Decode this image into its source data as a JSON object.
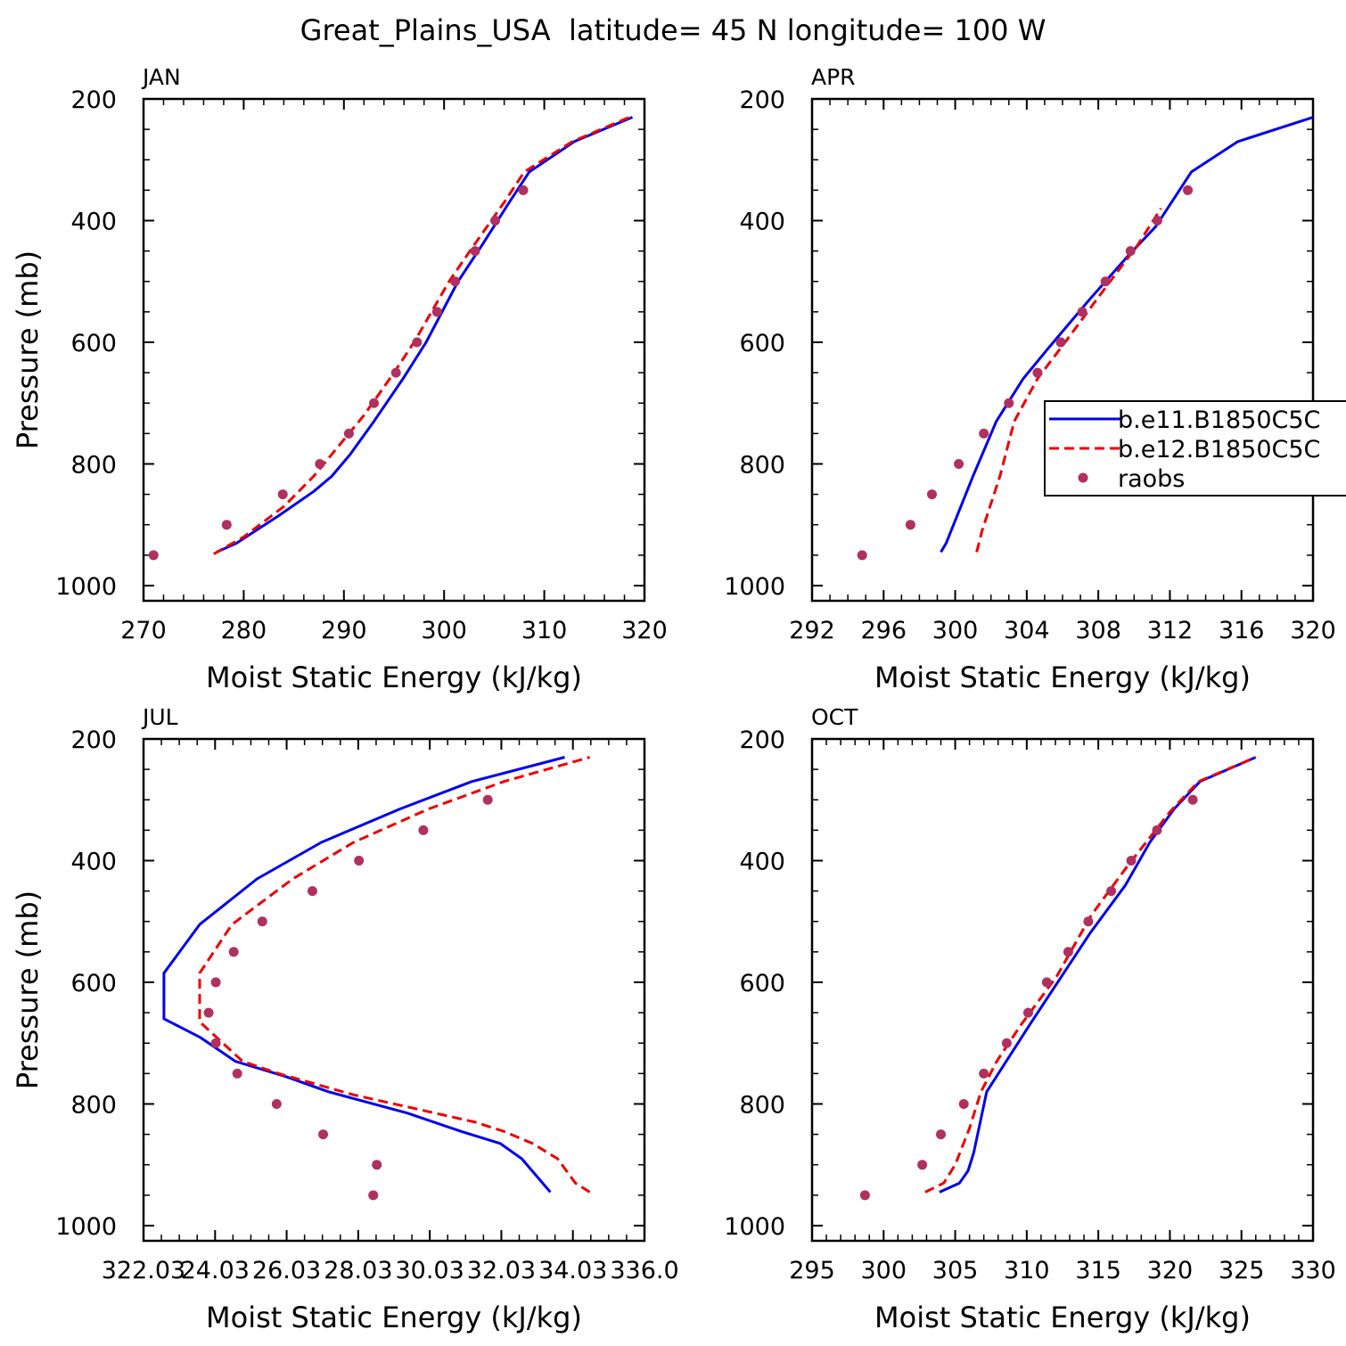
{
  "figure": {
    "title": "Great_Plains_USA  latitude= 45 N longitude= 100 W"
  },
  "colors": {
    "e11": "#0000ee",
    "e12": "#ee0000",
    "raobs": "#b03060",
    "axis": "#000000"
  },
  "legend": {
    "placement": "right-middle (APR panel, clipped)",
    "entries": [
      {
        "label": "b.e11.B1850C5C",
        "style": "solid",
        "color": "#0000ee"
      },
      {
        "label": "b.e12.B1850C5C",
        "style": "dashed",
        "color": "#ee0000"
      },
      {
        "label": "raobs",
        "style": "dot",
        "color": "#b03060"
      }
    ]
  },
  "chart_data": [
    {
      "type": "line",
      "panel_label": "JAN",
      "xlabel": "Moist Static Energy (kJ/kg)",
      "ylabel": "Pressure (mb)",
      "xlim": [
        270,
        320
      ],
      "ylim": [
        1025,
        200
      ],
      "x_ticks": [
        270,
        280,
        290,
        300,
        310,
        320
      ],
      "x_tick_labels": [
        "270",
        "280",
        "290",
        "300",
        "310",
        "320"
      ],
      "y_ticks": [
        200,
        400,
        600,
        800,
        1000
      ],
      "y_tick_labels": [
        "200",
        "400",
        "600",
        "800",
        "1000"
      ],
      "x_minor": 2,
      "y_minor": 50,
      "series": [
        {
          "name": "b.e11.B1850C5C",
          "style": "solid",
          "x": [
            277.3,
            279.3,
            283.5,
            287.0,
            288.8,
            290.6,
            293.0,
            295.9,
            298.2,
            301.4,
            303.8,
            306.5,
            308.5,
            313.0,
            318.8
          ],
          "y": [
            945,
            930,
            885,
            845,
            820,
            785,
            730,
            660,
            600,
            500,
            440,
            370,
            320,
            270,
            230
          ]
        },
        {
          "name": "b.e12.B1850C5C",
          "style": "dashed",
          "x": [
            277.0,
            280.0,
            284.0,
            287.0,
            289.0,
            292.0,
            295.0,
            297.0,
            300.5,
            303.0,
            306.0,
            308.0,
            312.8,
            318.5
          ],
          "y": [
            948,
            920,
            870,
            820,
            780,
            720,
            650,
            600,
            500,
            440,
            370,
            320,
            270,
            230
          ]
        },
        {
          "name": "raobs",
          "style": "dots",
          "x": [
            271.0,
            278.3,
            283.9,
            287.6,
            290.5,
            293.0,
            295.2,
            297.3,
            299.3,
            301.1,
            303.1,
            305.1,
            307.9
          ],
          "y": [
            950,
            900,
            850,
            800,
            750,
            700,
            650,
            600,
            550,
            500,
            450,
            400,
            350
          ]
        }
      ]
    },
    {
      "type": "line",
      "panel_label": "APR",
      "xlabel": "Moist Static Energy (kJ/kg)",
      "ylabel": "",
      "xlim": [
        292,
        320
      ],
      "ylim": [
        1025,
        200
      ],
      "x_ticks": [
        292,
        296,
        300,
        304,
        308,
        312,
        316,
        320
      ],
      "x_tick_labels": [
        "292",
        "296",
        "300",
        "304",
        "308",
        "312",
        "316",
        "320"
      ],
      "y_ticks": [
        200,
        400,
        600,
        800,
        1000
      ],
      "y_tick_labels": [
        "200",
        "400",
        "600",
        "800",
        "1000"
      ],
      "x_minor": 1,
      "y_minor": 50,
      "series": [
        {
          "name": "b.e11.B1850C5C",
          "style": "solid",
          "x": [
            299.2,
            299.5,
            301.0,
            302.3,
            303.8,
            305.2,
            307.5,
            309.6,
            311.2,
            313.2,
            315.8,
            320.0
          ],
          "y": [
            945,
            930,
            820,
            730,
            660,
            610,
            530,
            460,
            410,
            320,
            270,
            230
          ]
        },
        {
          "name": "b.e12.B1850C5C",
          "style": "dashed",
          "x": [
            301.2,
            301.5,
            302.5,
            303.3,
            304.6,
            306.4,
            308.4,
            310.2,
            311.5
          ],
          "y": [
            945,
            910,
            820,
            730,
            660,
            590,
            510,
            440,
            380
          ]
        },
        {
          "name": "raobs",
          "style": "dots",
          "x": [
            294.8,
            297.5,
            298.7,
            300.2,
            301.6,
            303.0,
            304.6,
            305.9,
            307.1,
            308.4,
            309.8,
            311.3,
            313.0
          ],
          "y": [
            950,
            900,
            850,
            800,
            750,
            700,
            650,
            600,
            550,
            500,
            450,
            400,
            350
          ]
        }
      ]
    },
    {
      "type": "line",
      "panel_label": "JUL",
      "xlabel": "Moist Static Energy (kJ/kg)",
      "ylabel": "Pressure (mb)",
      "xlim": [
        322.03,
        336.03
      ],
      "ylim": [
        1025,
        200
      ],
      "x_ticks": [
        322.03,
        324.03,
        326.03,
        328.03,
        330.03,
        332.03,
        334.03,
        336.03
      ],
      "x_tick_labels": [
        "322.03",
        "24.03",
        "26.03",
        "28.03",
        "30.03",
        "32.03",
        "34.03",
        "336.0"
      ],
      "y_ticks": [
        200,
        400,
        600,
        800,
        1000
      ],
      "y_tick_labels": [
        "200",
        "400",
        "600",
        "800",
        "1000"
      ],
      "x_minor": 0.5,
      "y_minor": 50,
      "series": [
        {
          "name": "b.e11.B1850C5C",
          "style": "solid",
          "x": [
            333.4,
            332.6,
            332.0,
            330.9,
            329.4,
            327.2,
            326.0,
            324.6,
            323.6,
            322.6,
            322.6,
            323.6,
            325.2,
            327.0,
            329.2,
            331.2,
            333.8
          ],
          "y": [
            945,
            890,
            865,
            845,
            815,
            780,
            755,
            730,
            690,
            660,
            585,
            505,
            430,
            370,
            315,
            270,
            230
          ]
        },
        {
          "name": "b.e12.B1850C5C",
          "style": "dashed",
          "x": [
            334.5,
            334.1,
            333.6,
            332.9,
            332.1,
            331.3,
            329.8,
            327.9,
            325.8,
            324.8,
            323.6,
            323.6,
            324.5,
            326.2,
            327.9,
            330.0,
            332.1,
            334.5
          ],
          "y": [
            945,
            930,
            890,
            865,
            845,
            830,
            810,
            785,
            750,
            730,
            665,
            585,
            505,
            430,
            370,
            315,
            270,
            230
          ]
        },
        {
          "name": "raobs",
          "style": "dots",
          "x": [
            328.45,
            328.55,
            327.05,
            325.75,
            324.65,
            324.05,
            323.85,
            324.05,
            324.55,
            325.35,
            326.75,
            328.05,
            329.85,
            331.65
          ],
          "y": [
            950,
            900,
            850,
            800,
            750,
            700,
            650,
            600,
            550,
            500,
            450,
            400,
            350,
            300
          ]
        }
      ]
    },
    {
      "type": "line",
      "panel_label": "OCT",
      "xlabel": "Moist Static Energy (kJ/kg)",
      "ylabel": "",
      "xlim": [
        295,
        330
      ],
      "ylim": [
        1025,
        200
      ],
      "x_ticks": [
        295,
        300,
        305,
        310,
        315,
        320,
        325,
        330
      ],
      "x_tick_labels": [
        "295",
        "300",
        "305",
        "310",
        "315",
        "320",
        "325",
        "330"
      ],
      "y_ticks": [
        200,
        400,
        600,
        800,
        1000
      ],
      "y_tick_labels": [
        "200",
        "400",
        "600",
        "800",
        "1000"
      ],
      "x_minor": 1,
      "y_minor": 50,
      "series": [
        {
          "name": "b.e11.B1850C5C",
          "style": "solid",
          "x": [
            303.9,
            305.3,
            305.9,
            306.3,
            307.2,
            310.2,
            314.4,
            316.9,
            318.6,
            320.3,
            322.1,
            326.0
          ],
          "y": [
            945,
            930,
            910,
            880,
            780,
            670,
            520,
            440,
            370,
            315,
            270,
            230
          ]
        },
        {
          "name": "b.e12.B1850C5C",
          "style": "dashed",
          "x": [
            302.9,
            304.2,
            305.0,
            306.0,
            306.8,
            307.9,
            309.6,
            312.1,
            314.5,
            317.0,
            320.0,
            322.0,
            326.0
          ],
          "y": [
            945,
            930,
            900,
            840,
            780,
            730,
            670,
            590,
            490,
            410,
            320,
            270,
            230
          ]
        },
        {
          "name": "raobs",
          "style": "dots",
          "x": [
            298.7,
            302.7,
            304.0,
            305.6,
            307.0,
            308.6,
            310.1,
            311.4,
            312.9,
            314.3,
            315.9,
            317.3,
            319.1,
            321.6
          ],
          "y": [
            950,
            900,
            850,
            800,
            750,
            700,
            650,
            600,
            550,
            500,
            450,
            400,
            350,
            300
          ]
        }
      ]
    }
  ]
}
